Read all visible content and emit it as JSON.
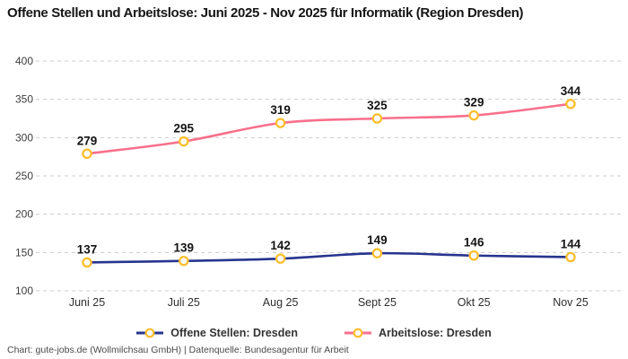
{
  "title": "Offene Stellen und Arbeitslose: Juni 2025 - Nov 2025 für Informatik (Region Dresden)",
  "footer": "Chart: gute-jobs.de (Wollmilchsau GmbH) | Datenquelle: Bundesagentur für Arbeit",
  "colors": {
    "open_positions_line": "#27348f",
    "unemployed_line": "#f8708c",
    "marker_ring": "#fdbe2e",
    "marker_fill": "#ffffff",
    "gridline": "#cccccc",
    "tick_text": "#3d3d3d",
    "value_label": "#141414"
  },
  "chart_data": {
    "type": "line",
    "title": "Offene Stellen und Arbeitslose: Juni 2025 - Nov 2025 für Informatik (Region Dresden)",
    "categories": [
      "Juni 25",
      "Juli 25",
      "Aug 25",
      "Sept 25",
      "Okt 25",
      "Nov 25"
    ],
    "series": [
      {
        "name": "Offene Stellen: Dresden",
        "color": "#27348f",
        "values": [
          137,
          139,
          142,
          149,
          146,
          144
        ]
      },
      {
        "name": "Arbeitslose: Dresden",
        "color": "#f8708c",
        "values": [
          279,
          295,
          319,
          325,
          329,
          344
        ]
      }
    ],
    "xlabel": "",
    "ylabel": "",
    "yticks": [
      400,
      350,
      300,
      250,
      200,
      150,
      100
    ],
    "ylim": [
      100,
      400
    ],
    "grid": "dashed horizontal",
    "data_labels": true,
    "legend_position": "bottom",
    "marker": {
      "shape": "ring",
      "fill": "#ffffff",
      "stroke": "#fdbe2e"
    }
  },
  "attribution": {
    "source_label": "Chart: gute-jobs.de (Wollmilchsau GmbH) | Datenquelle: Bundesagentur für Arbeit"
  }
}
